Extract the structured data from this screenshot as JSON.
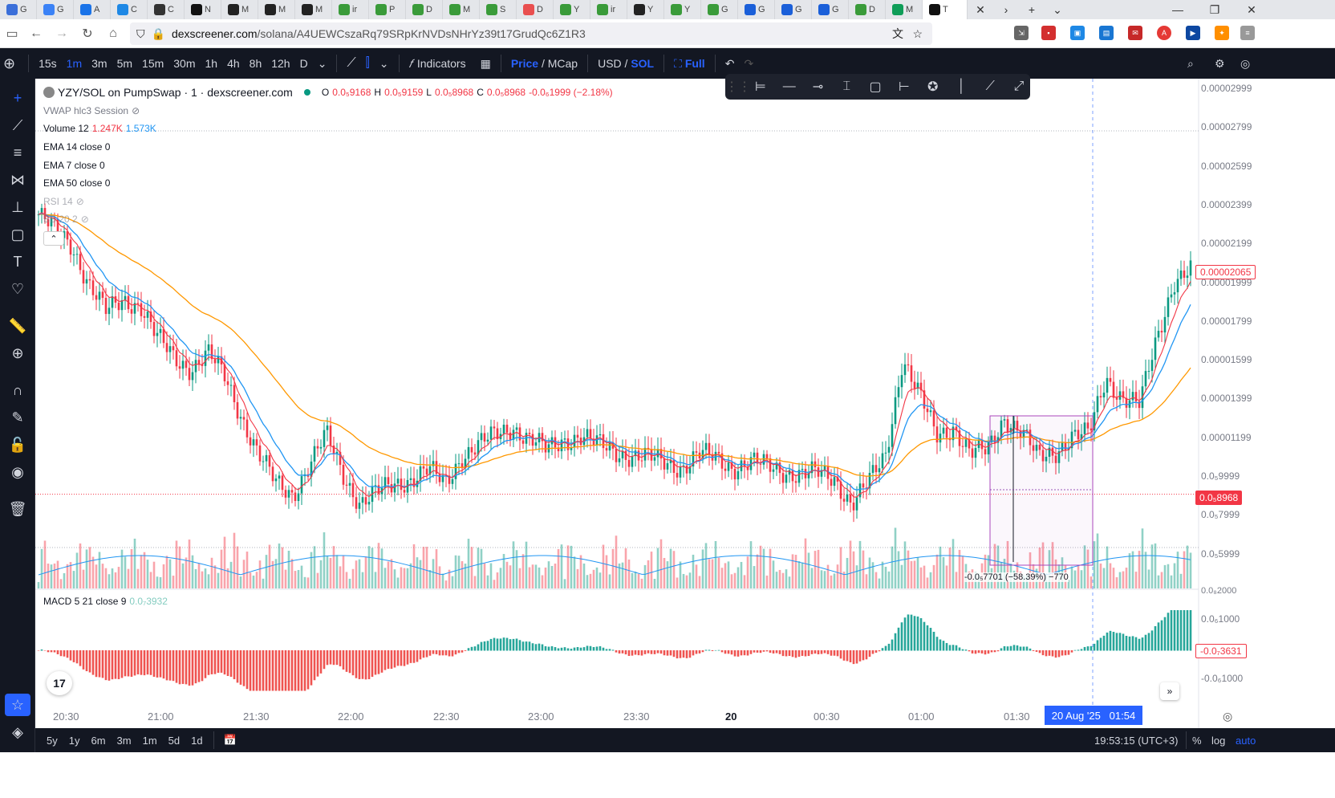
{
  "browser": {
    "tabs": [
      {
        "label": "G",
        "color": "#3b6fd9"
      },
      {
        "label": "G",
        "color": "#3b82f6"
      },
      {
        "label": "A",
        "color": "#1a73e8"
      },
      {
        "label": "C",
        "color": "#1e88e5"
      },
      {
        "label": "C",
        "color": "#333"
      },
      {
        "label": "N",
        "color": "#111"
      },
      {
        "label": "M",
        "color": "#222"
      },
      {
        "label": "M",
        "color": "#222"
      },
      {
        "label": "M",
        "color": "#222"
      },
      {
        "label": "ir",
        "color": "#3a9b3a"
      },
      {
        "label": "P",
        "color": "#3a9b3a"
      },
      {
        "label": "D",
        "color": "#3a9b3a"
      },
      {
        "label": "M",
        "color": "#3a9b3a"
      },
      {
        "label": "S",
        "color": "#3a9b3a"
      },
      {
        "label": "D",
        "color": "#e94f4f"
      },
      {
        "label": "Y",
        "color": "#3a9b3a"
      },
      {
        "label": "ir",
        "color": "#3a9b3a"
      },
      {
        "label": "Y",
        "color": "#222"
      },
      {
        "label": "Y",
        "color": "#3a9b3a"
      },
      {
        "label": "G",
        "color": "#3a9b3a"
      },
      {
        "label": "G",
        "color": "#1a5fd9"
      },
      {
        "label": "G",
        "color": "#1a5fd9"
      },
      {
        "label": "G",
        "color": "#1a5fd9"
      },
      {
        "label": "D",
        "color": "#3a9b3a"
      },
      {
        "label": "M",
        "color": "#0f9d58"
      },
      {
        "label": "T",
        "color": "#111"
      }
    ],
    "url_host": "dexscreener.com",
    "url_path": "/solana/A4UEWCszaRq79SRpKrNVDsNHrYz39t17GrudQc6Z1R3"
  },
  "toolbar": {
    "timeframes": [
      "15s",
      "1m",
      "3m",
      "5m",
      "15m",
      "30m",
      "1h",
      "4h",
      "8h",
      "12h",
      "D"
    ],
    "active_timeframe": "1m",
    "indicators_label": "Indicators",
    "price_label": "Price",
    "mcap_label": "MCap",
    "usd_label": "USD",
    "sol_label": "SOL",
    "full_label": "Full"
  },
  "legend": {
    "title": "YZY/SOL on PumpSwap · 1 · dexscreener.com",
    "o": "0.0₅9168",
    "h": "0.0₅9159",
    "l": "0.0₅8968",
    "c": "0.0₅8968",
    "change": "-0.0₆1999 (−2.18%)",
    "vwap": "VWAP hlc3 Session",
    "volume_label": "Volume 12",
    "volume_v1": "1.247K",
    "volume_v2": "1.573K",
    "ema14": "EMA 14 close 0",
    "ema7": "EMA 7 close 0",
    "ema50": "EMA 50 close 0",
    "rsi": "RSI 14",
    "bb": "BB 20 2",
    "macd_label": "MACD 5 21 close 9",
    "macd_value": "0.0₇3932"
  },
  "price_axis": [
    "0.00002999",
    "0.00002799",
    "0.00002599",
    "0.00002399",
    "0.00002199",
    "0.00001999",
    "0.00001799",
    "0.00001599",
    "0.00001399",
    "0.00001199",
    "0.0₅9999",
    "0.0₅7999",
    "0.0₅5999"
  ],
  "price_tag_current": "0.00002065",
  "price_tag_line": "0.0₅8968",
  "macd_axis": [
    "0.0₈2000",
    "0.0₆1000",
    "-0.0₆1000"
  ],
  "macd_tag": "-0.0₇3631",
  "time_axis": [
    "20:30",
    "21:00",
    "21:30",
    "22:00",
    "22:30",
    "23:00",
    "23:30",
    "20",
    "00:30",
    "01:00",
    "01:30"
  ],
  "crosshair_time": "20 Aug '25   01:54",
  "measure_label": "-0.0₅7701 (−58.39%) −770",
  "bottom": {
    "ranges": [
      "5y",
      "1y",
      "6m",
      "3m",
      "1m",
      "5d",
      "1d"
    ],
    "clock": "19:53:15 (UTC+3)",
    "pct": "%",
    "log": "log",
    "auto": "auto"
  },
  "chart_data": {
    "type": "candlestick",
    "price_unit": "SOL",
    "close_path": [
      2.34e-05,
      2.25e-05,
      2.18e-05,
      1.98e-05,
      1.83e-05,
      1.9e-05,
      1.88e-05,
      1.7e-05,
      1.6e-05,
      1.55e-05,
      1.62e-05,
      1.5e-05,
      1.3e-05,
      1.1e-05,
      9.5e-06,
      9e-06,
      1.05e-05,
      1.2e-05,
      1e-05,
      8.5e-06,
      9e-06,
      9.5e-06,
      9.8e-06,
      1.02e-05,
      9.5e-06,
      1.1e-05,
      1.15e-05,
      1.2e-05,
      1.25e-05,
      1.18e-05,
      1.12e-05,
      1.18e-05,
      1.2e-05,
      1.15e-05,
      1.12e-05,
      1.1e-05,
      1.08e-05,
      1.06e-05,
      1.04e-05,
      1.1e-05,
      1.08e-05,
      1.04e-05,
      1.06e-05,
      1.04e-05,
      1.02e-05,
      1e-05,
      1e-05,
      9.8e-06,
      8.5e-06,
      9.5e-06,
      1.1e-05,
      1.6e-05,
      1.4e-05,
      1.2e-05,
      1.25e-05,
      1.1e-05,
      1.12e-05,
      1.3e-05,
      1.22e-05,
      1.08e-05,
      1.12e-05,
      1.2e-05,
      1.2e-05,
      1.5e-05,
      1.4e-05,
      1.35e-05,
      1.7e-05,
      2e-05,
      2.05e-05
    ]
  }
}
